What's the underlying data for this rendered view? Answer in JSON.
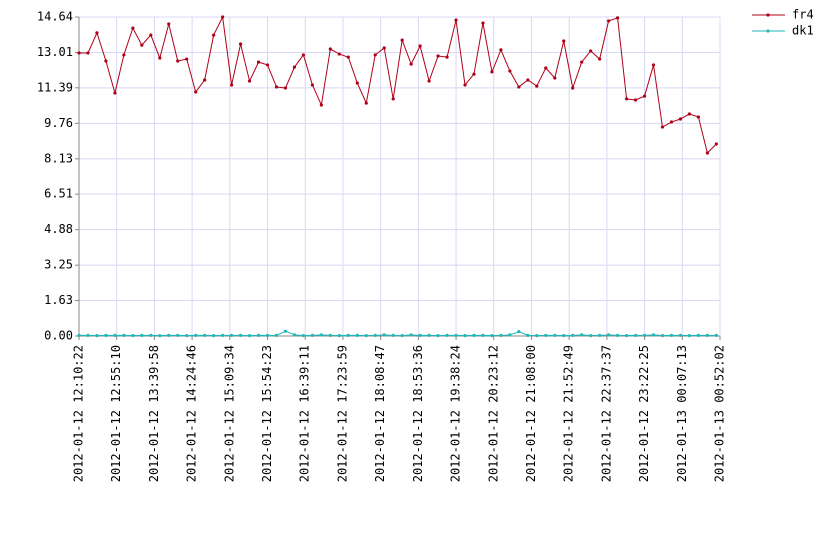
{
  "chart_data": {
    "type": "line",
    "x": [
      "2012-01-12 12:10:22",
      "2012-01-12 12:21:02",
      "2012-01-12 12:31:42",
      "2012-01-12 12:42:22",
      "2012-01-12 12:53:02",
      "2012-01-12 13:03:42",
      "2012-01-12 13:14:22",
      "2012-01-12 13:25:02",
      "2012-01-12 13:35:42",
      "2012-01-12 13:46:22",
      "2012-01-12 13:57:02",
      "2012-01-12 14:07:42",
      "2012-01-12 14:18:22",
      "2012-01-12 14:29:02",
      "2012-01-12 14:39:42",
      "2012-01-12 14:50:22",
      "2012-01-12 15:01:02",
      "2012-01-12 15:11:42",
      "2012-01-12 15:22:22",
      "2012-01-12 15:33:02",
      "2012-01-12 15:43:42",
      "2012-01-12 15:54:22",
      "2012-01-12 16:05:02",
      "2012-01-12 16:15:42",
      "2012-01-12 16:26:22",
      "2012-01-12 16:37:02",
      "2012-01-12 16:47:42",
      "2012-01-12 16:58:22",
      "2012-01-12 17:09:02",
      "2012-01-12 17:19:42",
      "2012-01-12 17:30:22",
      "2012-01-12 17:41:02",
      "2012-01-12 17:51:42",
      "2012-01-12 18:02:22",
      "2012-01-12 18:13:02",
      "2012-01-12 18:23:42",
      "2012-01-12 18:34:22",
      "2012-01-12 18:45:02",
      "2012-01-12 18:55:42",
      "2012-01-12 19:06:22",
      "2012-01-12 19:17:02",
      "2012-01-12 19:27:42",
      "2012-01-12 19:38:22",
      "2012-01-12 19:49:02",
      "2012-01-12 19:59:42",
      "2012-01-12 20:10:22",
      "2012-01-12 20:21:02",
      "2012-01-12 20:31:42",
      "2012-01-12 20:42:22",
      "2012-01-12 20:53:02",
      "2012-01-12 21:03:42",
      "2012-01-12 21:14:22",
      "2012-01-12 21:25:02",
      "2012-01-12 21:35:42",
      "2012-01-12 21:46:22",
      "2012-01-12 21:57:02",
      "2012-01-12 22:07:42",
      "2012-01-12 22:18:22",
      "2012-01-12 22:29:02",
      "2012-01-12 22:39:42",
      "2012-01-12 22:50:22",
      "2012-01-12 23:01:02",
      "2012-01-12 23:11:42",
      "2012-01-12 23:22:22",
      "2012-01-12 23:33:02",
      "2012-01-12 23:43:42",
      "2012-01-12 23:54:22",
      "2012-01-13 00:05:02",
      "2012-01-13 00:15:42",
      "2012-01-13 00:26:22",
      "2012-01-13 00:37:02",
      "2012-01-13 00:47:42"
    ],
    "series": [
      {
        "name": "fr4",
        "color": "#b00018",
        "values": [
          12.99,
          12.99,
          13.91,
          12.62,
          11.15,
          12.9,
          14.13,
          13.35,
          13.81,
          12.76,
          14.32,
          12.62,
          12.71,
          11.2,
          11.75,
          13.81,
          14.64,
          11.52,
          13.4,
          11.7,
          12.57,
          12.44,
          11.43,
          11.38,
          12.34,
          12.9,
          11.52,
          10.6,
          13.17,
          12.94,
          12.8,
          11.61,
          10.69,
          12.9,
          13.22,
          10.88,
          13.58,
          12.48,
          13.31,
          11.7,
          12.85,
          12.8,
          14.5,
          11.52,
          12.02,
          14.36,
          12.12,
          13.13,
          12.16,
          11.43,
          11.75,
          11.47,
          12.3,
          11.84,
          13.54,
          11.38,
          12.57,
          13.08,
          12.71,
          14.46,
          14.6,
          10.88,
          10.83,
          11.01,
          12.44,
          9.59,
          9.82,
          9.96,
          10.19,
          10.05,
          8.4,
          8.81
        ]
      },
      {
        "name": "dk1",
        "color": "#20b8b8",
        "values": [
          0.03,
          0.03,
          0.02,
          0.03,
          0.03,
          0.03,
          0.02,
          0.03,
          0.03,
          0.02,
          0.03,
          0.03,
          0.02,
          0.03,
          0.03,
          0.02,
          0.03,
          0.03,
          0.03,
          0.02,
          0.03,
          0.03,
          0.03,
          0.22,
          0.05,
          0.02,
          0.03,
          0.05,
          0.03,
          0.02,
          0.03,
          0.03,
          0.02,
          0.03,
          0.05,
          0.03,
          0.02,
          0.05,
          0.03,
          0.03,
          0.02,
          0.03,
          0.03,
          0.02,
          0.03,
          0.03,
          0.02,
          0.03,
          0.05,
          0.2,
          0.03,
          0.02,
          0.03,
          0.03,
          0.02,
          0.03,
          0.05,
          0.02,
          0.03,
          0.05,
          0.03,
          0.02,
          0.03,
          0.03,
          0.05,
          0.02,
          0.03,
          0.03,
          0.02,
          0.03,
          0.03,
          0.03
        ]
      }
    ],
    "xlim": [
      "2012-01-12 12:10:22",
      "2012-01-13 00:52:02"
    ],
    "xticks": [
      "2012-01-12 12:10:22",
      "2012-01-12 12:55:10",
      "2012-01-12 13:39:58",
      "2012-01-12 14:24:46",
      "2012-01-12 15:09:34",
      "2012-01-12 15:54:23",
      "2012-01-12 16:39:11",
      "2012-01-12 17:23:59",
      "2012-01-12 18:08:47",
      "2012-01-12 18:53:36",
      "2012-01-12 19:38:24",
      "2012-01-12 20:23:12",
      "2012-01-12 21:08:00",
      "2012-01-12 21:52:49",
      "2012-01-12 22:37:37",
      "2012-01-12 23:22:25",
      "2012-01-13 00:07:13",
      "2012-01-13 00:52:02"
    ],
    "ylim": [
      0,
      14.64
    ],
    "yticks": [
      {
        "value": 0,
        "label": "0.00"
      },
      1.63,
      3.25,
      4.88,
      6.51,
      8.13,
      9.76,
      11.39,
      13.01,
      14.64
    ],
    "grid": true,
    "legend": "top-right"
  }
}
